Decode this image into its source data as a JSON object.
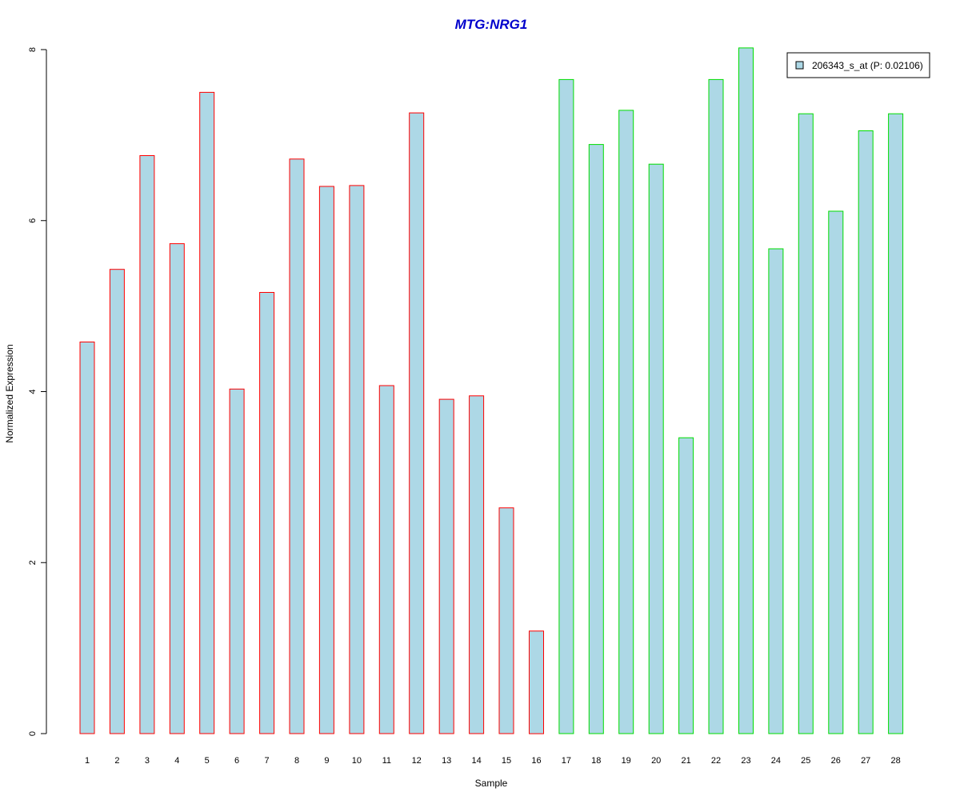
{
  "colors": {
    "title": "#0000CC",
    "bar_fill": "#ADD8E6",
    "group1_border": "#FF0000",
    "group2_border": "#00DD00",
    "axis": "#000000"
  },
  "chart_data": {
    "type": "bar",
    "title": "MTG:NRG1",
    "xlabel": "Sample",
    "ylabel": "Normalized Expression",
    "ylim": [
      0,
      8
    ],
    "yticks": [
      "0",
      "2",
      "4",
      "6",
      "8"
    ],
    "grid": false,
    "legend_position": "top-right",
    "categories": [
      "1",
      "2",
      "3",
      "4",
      "5",
      "6",
      "7",
      "8",
      "9",
      "10",
      "11",
      "12",
      "13",
      "14",
      "15",
      "16",
      "17",
      "18",
      "19",
      "20",
      "21",
      "22",
      "23",
      "24",
      "25",
      "26",
      "27",
      "28"
    ],
    "series": [
      {
        "name": "206343_s_at (P: 0.02106)",
        "values": [
          4.58,
          5.43,
          6.76,
          5.73,
          7.5,
          4.03,
          5.16,
          6.72,
          6.4,
          6.41,
          4.07,
          7.26,
          3.91,
          3.95,
          2.64,
          1.2,
          7.65,
          6.89,
          7.29,
          6.66,
          3.46,
          7.65,
          8.02,
          5.67,
          7.25,
          6.11,
          7.05,
          7.25
        ],
        "groups": [
          1,
          1,
          1,
          1,
          1,
          1,
          1,
          1,
          1,
          1,
          1,
          1,
          1,
          1,
          1,
          1,
          2,
          2,
          2,
          2,
          2,
          2,
          2,
          2,
          2,
          2,
          2,
          2
        ]
      }
    ]
  }
}
